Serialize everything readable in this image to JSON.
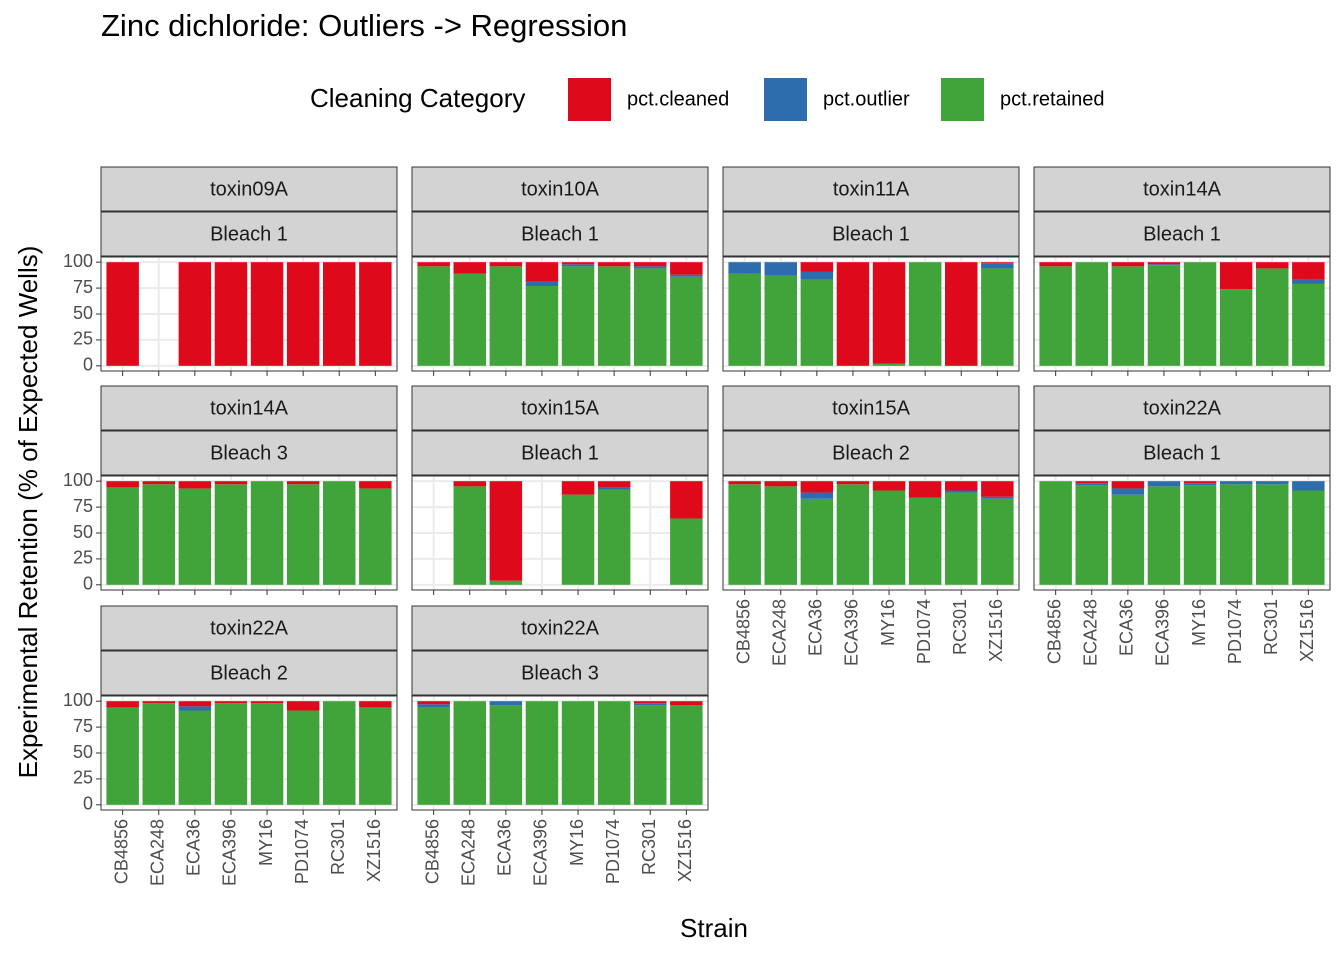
{
  "chart_data": {
    "type": "bar",
    "title": "Zinc dichloride: Outliers -> Regression",
    "x_label": "Strain",
    "y_label": "Experimental Retention (% of Expected Wells)",
    "legend_title": "Cleaning Category",
    "categories": [
      "CB4856",
      "ECA248",
      "ECA36",
      "ECA396",
      "MY16",
      "PD1074",
      "RC301",
      "XZ1516"
    ],
    "series": [
      {
        "name": "pct.cleaned",
        "color": "#de0a1c"
      },
      {
        "name": "pct.outlier",
        "color": "#2d6cad"
      },
      {
        "name": "pct.retained",
        "color": "#41a43b"
      }
    ],
    "ylim": [
      -5,
      105
    ],
    "yticks": [
      0,
      25,
      50,
      75,
      100
    ],
    "grid": true,
    "panels": [
      {
        "strip": [
          "toxin09A",
          "Bleach 1"
        ],
        "values": [
          [
            100,
            null,
            100,
            100,
            100,
            100,
            100,
            100
          ],
          [
            0,
            null,
            0,
            0,
            0,
            0,
            0,
            0
          ],
          [
            0,
            null,
            0,
            0,
            0,
            0,
            0,
            0
          ]
        ]
      },
      {
        "strip": [
          "toxin10A",
          "Bleach 1"
        ],
        "values": [
          [
            4,
            11,
            4,
            19,
            2,
            4,
            4,
            12
          ],
          [
            0,
            0,
            0,
            4,
            2,
            0,
            2,
            2
          ],
          [
            96,
            89,
            96,
            77,
            96,
            96,
            94,
            86
          ]
        ]
      },
      {
        "strip": [
          "toxin11A",
          "Bleach 1"
        ],
        "values": [
          [
            0,
            0,
            9,
            100,
            98,
            0,
            100,
            1
          ],
          [
            11,
            13,
            8,
            0,
            0,
            0,
            0,
            5
          ],
          [
            89,
            87,
            83,
            0,
            2,
            100,
            0,
            94
          ]
        ]
      },
      {
        "strip": [
          "toxin14A",
          "Bleach 1"
        ],
        "values": [
          [
            4,
            0,
            4,
            2,
            0,
            26,
            6,
            17
          ],
          [
            0,
            0,
            0,
            1,
            0,
            0,
            0,
            4
          ],
          [
            96,
            100,
            96,
            97,
            100,
            74,
            94,
            79
          ]
        ]
      },
      {
        "strip": [
          "toxin14A",
          "Bleach 3"
        ],
        "values": [
          [
            6,
            3,
            7,
            3,
            0,
            3,
            0,
            7
          ],
          [
            0,
            0,
            0,
            0,
            0,
            0,
            0,
            0
          ],
          [
            94,
            97,
            93,
            97,
            100,
            97,
            100,
            93
          ]
        ]
      },
      {
        "strip": [
          "toxin15A",
          "Bleach 1"
        ],
        "values": [
          [
            null,
            5,
            96,
            null,
            13,
            6,
            null,
            36
          ],
          [
            null,
            0,
            0,
            null,
            0,
            2,
            null,
            0
          ],
          [
            null,
            95,
            4,
            null,
            87,
            92,
            null,
            64
          ]
        ]
      },
      {
        "strip": [
          "toxin15A",
          "Bleach 2"
        ],
        "values": [
          [
            3,
            5,
            11,
            3,
            9,
            16,
            9,
            15
          ],
          [
            0,
            0,
            6,
            0,
            0,
            0,
            2,
            2
          ],
          [
            97,
            95,
            83,
            97,
            91,
            84,
            89,
            83
          ]
        ]
      },
      {
        "strip": [
          "toxin22A",
          "Bleach 1"
        ],
        "values": [
          [
            0,
            2,
            7,
            0,
            2,
            0,
            0,
            0
          ],
          [
            0,
            2,
            6,
            5,
            2,
            3,
            3,
            9
          ],
          [
            100,
            96,
            87,
            95,
            96,
            97,
            97,
            91
          ]
        ]
      },
      {
        "strip": [
          "toxin22A",
          "Bleach 2"
        ],
        "values": [
          [
            6,
            2,
            5,
            2,
            2,
            9,
            0,
            6
          ],
          [
            0,
            0,
            4,
            0,
            0,
            0,
            0,
            0
          ],
          [
            94,
            98,
            91,
            98,
            98,
            91,
            100,
            94
          ]
        ]
      },
      {
        "strip": [
          "toxin22A",
          "Bleach 3"
        ],
        "values": [
          [
            3,
            0,
            0,
            0,
            0,
            0,
            2,
            4
          ],
          [
            3,
            0,
            4,
            0,
            0,
            0,
            2,
            0
          ],
          [
            94,
            100,
            96,
            100,
            100,
            100,
            96,
            96
          ]
        ]
      }
    ]
  }
}
